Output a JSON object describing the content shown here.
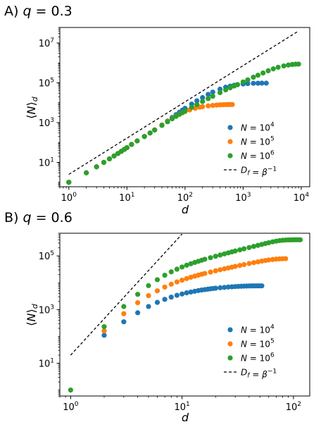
{
  "chart_data": [
    {
      "type": "scatter",
      "title": "A) q = 0.3",
      "xlabel": "d",
      "ylabel": "⟨N⟩d",
      "xscale": "log",
      "yscale": "log",
      "xlim": [
        0.7,
        14000
      ],
      "ylim": [
        0.6,
        60000000
      ],
      "xticks": [
        1,
        10,
        100,
        1000,
        10000
      ],
      "xtick_labels": [
        "10^0",
        "10^1",
        "10^2",
        "10^3",
        "10^4"
      ],
      "yticks": [
        10,
        1000,
        100000,
        10000000
      ],
      "ytick_labels": [
        "10^1",
        "10^3",
        "10^5",
        "10^7"
      ],
      "grid": false,
      "legend_position": "bottom-right",
      "series": [
        {
          "name": "N = 10^4",
          "color": "#1f77b4",
          "x": [
            1,
            2,
            3,
            4,
            5,
            6,
            7,
            8,
            9,
            10,
            12,
            15,
            20,
            25,
            30,
            40,
            50,
            60,
            70,
            80,
            90,
            100,
            130,
            160,
            200,
            250,
            300,
            400,
            500,
            600,
            700,
            800,
            1000,
            1200,
            1500,
            1800,
            2100,
            2500
          ],
          "y": [
            1,
            3,
            6,
            10,
            15,
            21,
            28,
            36,
            45,
            55,
            80,
            120,
            200,
            300,
            430,
            760,
            1200,
            1800,
            2500,
            3300,
            4200,
            5200,
            8500,
            12500,
            18000,
            26000,
            34000,
            48000,
            60000,
            68000,
            75000,
            80000,
            87000,
            91000,
            94000,
            95000,
            96000,
            96000
          ]
        },
        {
          "name": "N = 10^5",
          "color": "#ff7f0e",
          "x": [
            1,
            2,
            3,
            4,
            5,
            6,
            7,
            8,
            9,
            10,
            12,
            15,
            20,
            25,
            30,
            40,
            50,
            60,
            70,
            80,
            90,
            100,
            120,
            150,
            180,
            200,
            250,
            300,
            350,
            400,
            450,
            500,
            550,
            600,
            650
          ],
          "y": [
            1,
            3,
            6,
            10,
            15,
            21,
            28,
            36,
            45,
            55,
            80,
            120,
            200,
            300,
            430,
            750,
            1150,
            1600,
            2100,
            2600,
            3100,
            3600,
            4300,
            5200,
            5900,
            6300,
            6900,
            7300,
            7600,
            7800,
            7900,
            8000,
            8050,
            8100,
            8100
          ]
        },
        {
          "name": "N = 10^6",
          "color": "#2ca02c",
          "x": [
            1,
            2,
            3,
            4,
            5,
            6,
            7,
            8,
            9,
            10,
            12,
            15,
            20,
            25,
            30,
            40,
            50,
            60,
            70,
            80,
            90,
            100,
            130,
            160,
            200,
            250,
            300,
            400,
            500,
            600,
            700,
            800,
            1000,
            1200,
            1500,
            1800,
            2200,
            2700,
            3300,
            4000,
            5000,
            6000,
            7000,
            8000,
            9000
          ],
          "y": [
            1,
            3,
            6,
            10,
            15,
            21,
            28,
            36,
            45,
            55,
            80,
            120,
            200,
            300,
            420,
            720,
            1100,
            1550,
            2050,
            2600,
            3200,
            3800,
            5800,
            8000,
            11500,
            16000,
            21000,
            32000,
            44000,
            56000,
            69000,
            82000,
            110000,
            140000,
            190000,
            240000,
            310000,
            400000,
            500000,
            600000,
            700000,
            780000,
            830000,
            860000,
            870000
          ]
        },
        {
          "name": "Df = β^-1",
          "style": "dashed",
          "color": "#000000",
          "x": [
            1,
            9000
          ],
          "y": [
            2.5,
            40000000
          ]
        }
      ]
    },
    {
      "type": "scatter",
      "title": "B) q = 0.6",
      "xlabel": "d",
      "ylabel": "⟨N⟩d",
      "xscale": "log",
      "yscale": "log",
      "xlim": [
        0.8,
        140
      ],
      "ylim": [
        0.6,
        700000
      ],
      "xticks": [
        1,
        10,
        100
      ],
      "xtick_labels": [
        "10^0",
        "10^1",
        "10^2"
      ],
      "yticks": [
        10,
        1000,
        100000
      ],
      "ytick_labels": [
        "10^1",
        "10^3",
        "10^5"
      ],
      "grid": false,
      "legend_position": "bottom-right",
      "series": [
        {
          "name": "N = 10^4",
          "color": "#1f77b4",
          "x": [
            2,
            3,
            4,
            5,
            6,
            7,
            8,
            9,
            10,
            11,
            12,
            13,
            14,
            15,
            16,
            17,
            18,
            19,
            20,
            22,
            24,
            26,
            28,
            30,
            32,
            34,
            36,
            38,
            40,
            42,
            44,
            46,
            48,
            50,
            52
          ],
          "y": [
            110,
            350,
            760,
            1300,
            1850,
            2400,
            2900,
            3400,
            3800,
            4200,
            4500,
            4800,
            5100,
            5350,
            5550,
            5750,
            5950,
            6100,
            6250,
            6500,
            6700,
            6900,
            7050,
            7200,
            7300,
            7400,
            7480,
            7540,
            7580,
            7610,
            7630,
            7640,
            7650,
            7650,
            7650
          ]
        },
        {
          "name": "N = 10^5",
          "color": "#ff7f0e",
          "x": [
            2,
            3,
            4,
            5,
            6,
            7,
            8,
            9,
            10,
            11,
            12,
            13,
            14,
            15,
            16,
            18,
            20,
            22,
            24,
            26,
            28,
            30,
            33,
            36,
            40,
            44,
            48,
            52,
            56,
            60,
            65,
            70,
            75,
            80,
            85
          ],
          "y": [
            160,
            700,
            1800,
            3300,
            5000,
            6900,
            8800,
            10700,
            12500,
            14300,
            16000,
            17600,
            19200,
            20700,
            22200,
            25000,
            27800,
            30500,
            33000,
            35500,
            38000,
            40500,
            44000,
            47500,
            52000,
            56000,
            60000,
            64000,
            67500,
            70500,
            73500,
            76000,
            77500,
            78500,
            79000
          ]
        },
        {
          "name": "N = 10^6",
          "color": "#2ca02c",
          "x": [
            1,
            2,
            3,
            4,
            5,
            6,
            7,
            8,
            9,
            10,
            11,
            12,
            13,
            14,
            15,
            16,
            18,
            20,
            22,
            24,
            26,
            28,
            30,
            33,
            36,
            40,
            44,
            48,
            52,
            56,
            60,
            65,
            70,
            75,
            80,
            85,
            90,
            95,
            100,
            105,
            110,
            115
          ],
          "y": [
            1,
            230,
            1300,
            3700,
            7800,
            13000,
            19000,
            25500,
            32000,
            38500,
            45000,
            51000,
            57000,
            63000,
            69000,
            75000,
            86000,
            97000,
            108000,
            119000,
            130000,
            141000,
            152000,
            168000,
            184000,
            205000,
            226000,
            247000,
            268000,
            289000,
            310000,
            335000,
            355000,
            372000,
            383000,
            390000,
            394000,
            396000,
            397000,
            398000,
            398000,
            398000
          ]
        },
        {
          "name": "Df = β^-1",
          "style": "dashed",
          "color": "#000000",
          "x": [
            1,
            10
          ],
          "y": [
            20,
            650000
          ]
        }
      ]
    }
  ]
}
